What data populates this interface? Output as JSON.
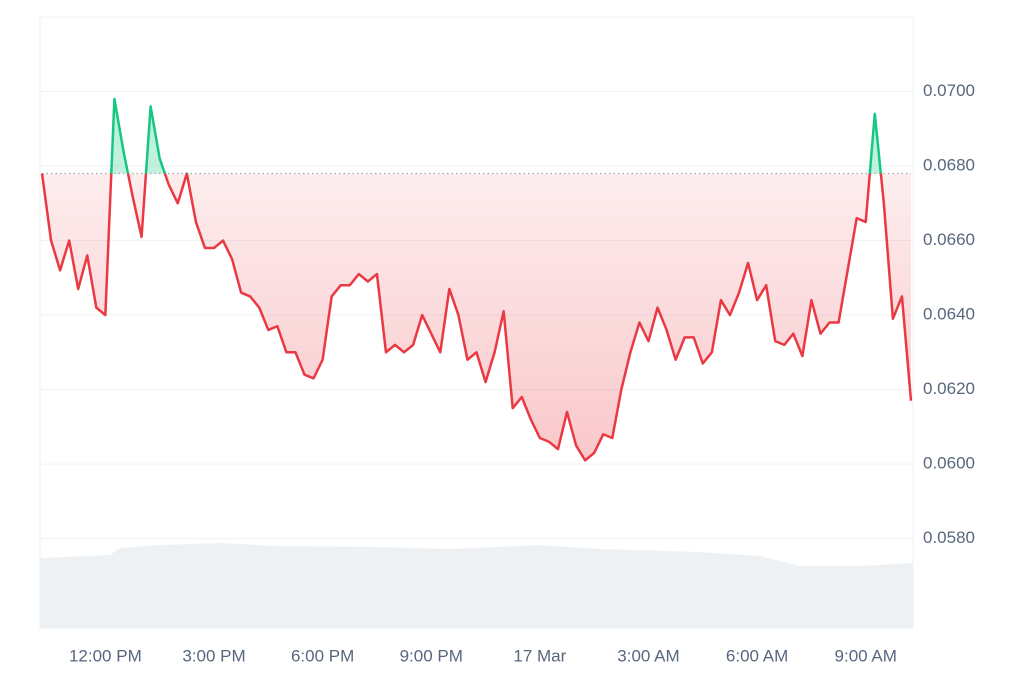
{
  "chart_data": {
    "type": "line",
    "categories": [
      null,
      null,
      null,
      null,
      null,
      null,
      null,
      "12:00 PM",
      null,
      null,
      null,
      null,
      null,
      null,
      null,
      null,
      null,
      null,
      null,
      "3:00 PM",
      null,
      null,
      null,
      null,
      null,
      null,
      null,
      null,
      null,
      null,
      null,
      "6:00 PM",
      null,
      null,
      null,
      null,
      null,
      null,
      null,
      null,
      null,
      null,
      null,
      "9:00 PM",
      null,
      null,
      null,
      null,
      null,
      null,
      null,
      null,
      null,
      null,
      null,
      "17 Mar",
      null,
      null,
      null,
      null,
      null,
      null,
      null,
      null,
      null,
      null,
      null,
      "3:00 AM",
      null,
      null,
      null,
      null,
      null,
      null,
      null,
      null,
      null,
      null,
      null,
      "6:00 AM",
      null,
      null,
      null,
      null,
      null,
      null,
      null,
      null,
      null,
      null,
      null,
      "9:00 AM",
      null,
      null,
      null,
      null,
      null
    ],
    "values": [
      0.0678,
      0.066,
      0.0652,
      0.066,
      0.0647,
      0.0656,
      0.0642,
      0.064,
      0.0698,
      0.0684,
      0.0672,
      0.0661,
      0.0696,
      0.0682,
      0.0675,
      0.067,
      0.0678,
      0.0665,
      0.0658,
      0.0658,
      0.066,
      0.0655,
      0.0646,
      0.0645,
      0.0642,
      0.0636,
      0.0637,
      0.063,
      0.063,
      0.0624,
      0.0623,
      0.0628,
      0.0645,
      0.0648,
      0.0648,
      0.0651,
      0.0649,
      0.0651,
      0.063,
      0.0632,
      0.063,
      0.0632,
      0.064,
      0.0635,
      0.063,
      0.0647,
      0.064,
      0.0628,
      0.063,
      0.0622,
      0.063,
      0.0641,
      0.0615,
      0.0618,
      0.0612,
      0.0607,
      0.0606,
      0.0604,
      0.0614,
      0.0605,
      0.0601,
      0.0603,
      0.0608,
      0.0607,
      0.062,
      0.063,
      0.0638,
      0.0633,
      0.0642,
      0.0636,
      0.0628,
      0.0634,
      0.0634,
      0.0627,
      0.063,
      0.0644,
      0.064,
      0.0646,
      0.0654,
      0.0644,
      0.0648,
      0.0633,
      0.0632,
      0.0635,
      0.0629,
      0.0644,
      0.0635,
      0.0638,
      0.0638,
      0.0652,
      0.0666,
      0.0665,
      0.0694,
      0.067,
      0.0639,
      0.0645,
      0.0617
    ],
    "baseline": 0.0678,
    "color_up": "#16c784",
    "color_down": "#ea3943",
    "ylim": [
      0.0556,
      0.072
    ],
    "yticks": [
      {
        "value": 0.058,
        "label": "0.0580"
      },
      {
        "value": 0.06,
        "label": "0.0600"
      },
      {
        "value": 0.062,
        "label": "0.0620"
      },
      {
        "value": 0.064,
        "label": "0.0640"
      },
      {
        "value": 0.066,
        "label": "0.0660"
      },
      {
        "value": 0.068,
        "label": "0.0680"
      },
      {
        "value": 0.07,
        "label": "0.0700"
      }
    ],
    "grid": true
  }
}
